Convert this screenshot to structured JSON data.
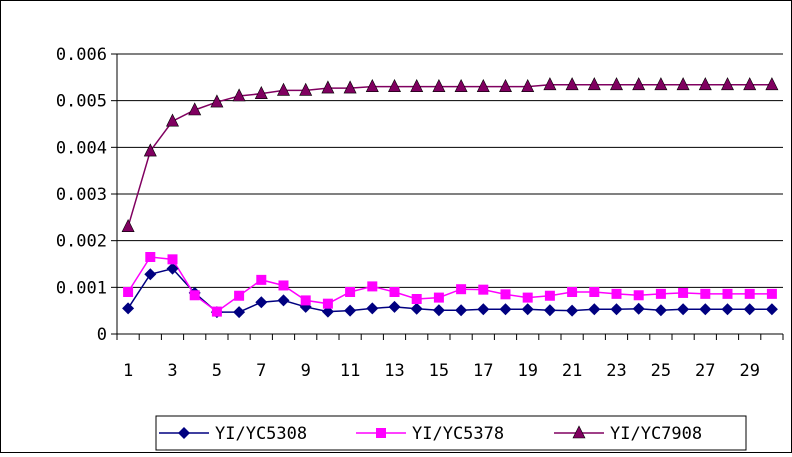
{
  "chart_data": {
    "type": "line",
    "title": "",
    "xlabel": "",
    "ylabel": "",
    "x": [
      1,
      2,
      3,
      4,
      5,
      6,
      7,
      8,
      9,
      10,
      11,
      12,
      13,
      14,
      15,
      16,
      17,
      18,
      19,
      20,
      21,
      22,
      23,
      24,
      25,
      26,
      27,
      28,
      29,
      30
    ],
    "x_tick_labels": [
      "1",
      "3",
      "5",
      "7",
      "9",
      "11",
      "13",
      "15",
      "17",
      "19",
      "21",
      "23",
      "25",
      "27",
      "29"
    ],
    "ylim": [
      0,
      0.006
    ],
    "y_tick_labels": [
      "0",
      "0.001",
      "0.002",
      "0.003",
      "0.004",
      "0.005",
      "0.006"
    ],
    "grid": "horizontal",
    "legend": "bottom",
    "series": [
      {
        "name": "YI/YC5308",
        "color": "#000080",
        "marker": "diamond",
        "values": [
          0.00055,
          0.00128,
          0.0014,
          0.00088,
          0.00047,
          0.00047,
          0.00068,
          0.00072,
          0.00058,
          0.00048,
          0.0005,
          0.00055,
          0.00058,
          0.00054,
          0.00051,
          0.00051,
          0.00053,
          0.00053,
          0.00053,
          0.00051,
          0.0005,
          0.00053,
          0.00053,
          0.00054,
          0.00051,
          0.00053,
          0.00053,
          0.00053,
          0.00053,
          0.00053
        ]
      },
      {
        "name": "YI/YC5378",
        "color": "#ff00ff",
        "marker": "square",
        "values": [
          0.0009,
          0.00165,
          0.0016,
          0.00083,
          0.00048,
          0.00082,
          0.00116,
          0.00104,
          0.00072,
          0.00065,
          0.0009,
          0.00102,
          0.0009,
          0.00075,
          0.00078,
          0.00096,
          0.00095,
          0.00085,
          0.00078,
          0.00082,
          0.0009,
          0.0009,
          0.00086,
          0.00083,
          0.00086,
          0.00088,
          0.00086,
          0.00086,
          0.00086,
          0.00086
        ]
      },
      {
        "name": "YI/YC7908",
        "color": "#800060",
        "marker": "triangle",
        "values": [
          0.0023,
          0.00392,
          0.00456,
          0.0048,
          0.00497,
          0.0051,
          0.00515,
          0.00522,
          0.00522,
          0.00527,
          0.00527,
          0.0053,
          0.0053,
          0.0053,
          0.0053,
          0.0053,
          0.0053,
          0.0053,
          0.0053,
          0.00534,
          0.00534,
          0.00534,
          0.00534,
          0.00534,
          0.00534,
          0.00534,
          0.00534,
          0.00534,
          0.00534,
          0.00534
        ]
      }
    ]
  }
}
